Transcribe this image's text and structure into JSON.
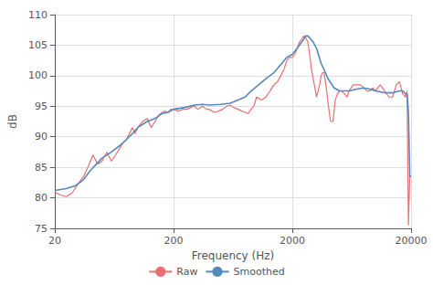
{
  "chart_data": {
    "type": "line",
    "xlabel": "Frequency (Hz)",
    "ylabel": "dB",
    "log": "x",
    "grid": true,
    "legend": "bottom",
    "xlim": [
      20,
      20000
    ],
    "ylim": [
      75,
      110
    ],
    "xticks": [
      20,
      200,
      2000,
      20000
    ],
    "yticks": [
      75,
      80,
      85,
      90,
      95,
      100,
      105,
      110
    ],
    "series": [
      {
        "name": "Raw",
        "color": "#e87070",
        "x": [
          20,
          22,
          25,
          28,
          32,
          35,
          38,
          42,
          46,
          50,
          55,
          60,
          65,
          70,
          75,
          80,
          85,
          90,
          95,
          100,
          110,
          120,
          130,
          140,
          150,
          160,
          170,
          180,
          190,
          200,
          220,
          240,
          260,
          280,
          300,
          320,
          350,
          380,
          400,
          440,
          480,
          520,
          560,
          600,
          640,
          700,
          750,
          800,
          850,
          900,
          950,
          1000,
          1100,
          1200,
          1300,
          1400,
          1500,
          1600,
          1700,
          1800,
          1900,
          2000,
          2100,
          2200,
          2300,
          2400,
          2500,
          2600,
          2700,
          2800,
          2900,
          3000,
          3100,
          3200,
          3300,
          3400,
          3500,
          3600,
          3700,
          3800,
          3900,
          4000,
          4200,
          4400,
          4600,
          4800,
          5000,
          5200,
          5500,
          5800,
          6000,
          6500,
          7000,
          7500,
          8000,
          8500,
          9000,
          9500,
          10000,
          11000,
          12000,
          13000,
          14000,
          15000,
          16000,
          17000,
          18000,
          18500,
          19000,
          19500,
          20000
        ],
        "values": [
          81.0,
          80.5,
          80.2,
          80.8,
          82.5,
          83.5,
          85.0,
          87.0,
          85.5,
          86.0,
          87.5,
          86.0,
          87.0,
          88.0,
          89.0,
          89.5,
          90.5,
          91.5,
          90.5,
          91.5,
          92.5,
          93.0,
          91.5,
          92.5,
          93.5,
          94.0,
          94.2,
          94.0,
          94.5,
          94.5,
          94.2,
          94.5,
          94.5,
          94.8,
          95.0,
          94.5,
          95.0,
          94.5,
          94.5,
          94.0,
          94.2,
          94.5,
          95.0,
          95.2,
          94.8,
          94.5,
          94.2,
          94.0,
          93.8,
          94.5,
          95.0,
          96.5,
          96.0,
          96.5,
          97.5,
          98.5,
          99.0,
          100.0,
          101.0,
          102.5,
          103.0,
          103.0,
          103.5,
          104.5,
          105.5,
          106.0,
          106.5,
          106.2,
          105.5,
          103.5,
          101.0,
          99.5,
          98.0,
          96.5,
          97.5,
          98.5,
          100.0,
          100.5,
          100.5,
          99.0,
          97.5,
          95.5,
          92.5,
          92.5,
          96.0,
          97.0,
          97.5,
          97.5,
          97.0,
          96.5,
          97.5,
          98.5,
          98.5,
          98.5,
          98.0,
          97.5,
          97.5,
          98.0,
          97.5,
          98.5,
          97.5,
          96.5,
          96.5,
          98.5,
          99.0,
          97.0,
          96.5,
          97.5,
          75.5,
          83.5,
          83.5
        ]
      },
      {
        "name": "Smoothed",
        "color": "#5588bb",
        "x": [
          20,
          25,
          30,
          35,
          40,
          50,
          60,
          70,
          80,
          90,
          100,
          120,
          140,
          160,
          180,
          200,
          250,
          300,
          350,
          400,
          500,
          600,
          700,
          800,
          900,
          1000,
          1200,
          1400,
          1600,
          1800,
          2000,
          2200,
          2400,
          2500,
          2600,
          2700,
          2800,
          3000,
          3200,
          3500,
          3800,
          4000,
          4500,
          5000,
          5500,
          6000,
          7000,
          8000,
          9000,
          10000,
          12000,
          14000,
          16000,
          17000,
          18000,
          18500,
          19000,
          19200,
          19500,
          20000
        ],
        "values": [
          81.2,
          81.5,
          82.0,
          83.0,
          84.5,
          86.5,
          87.5,
          88.5,
          89.5,
          90.5,
          91.5,
          92.5,
          93.0,
          93.8,
          94.0,
          94.5,
          94.8,
          95.2,
          95.3,
          95.2,
          95.3,
          95.5,
          96.0,
          96.5,
          97.5,
          98.2,
          99.5,
          100.5,
          101.8,
          103.0,
          103.5,
          104.5,
          105.5,
          106.0,
          106.5,
          106.5,
          106.2,
          105.5,
          104.5,
          102.0,
          100.5,
          99.5,
          98.0,
          97.5,
          97.5,
          97.5,
          97.8,
          98.0,
          97.8,
          97.5,
          97.2,
          97.2,
          97.5,
          97.5,
          97.0,
          97.0,
          94.0,
          90.0,
          83.5,
          83.5
        ]
      }
    ]
  }
}
